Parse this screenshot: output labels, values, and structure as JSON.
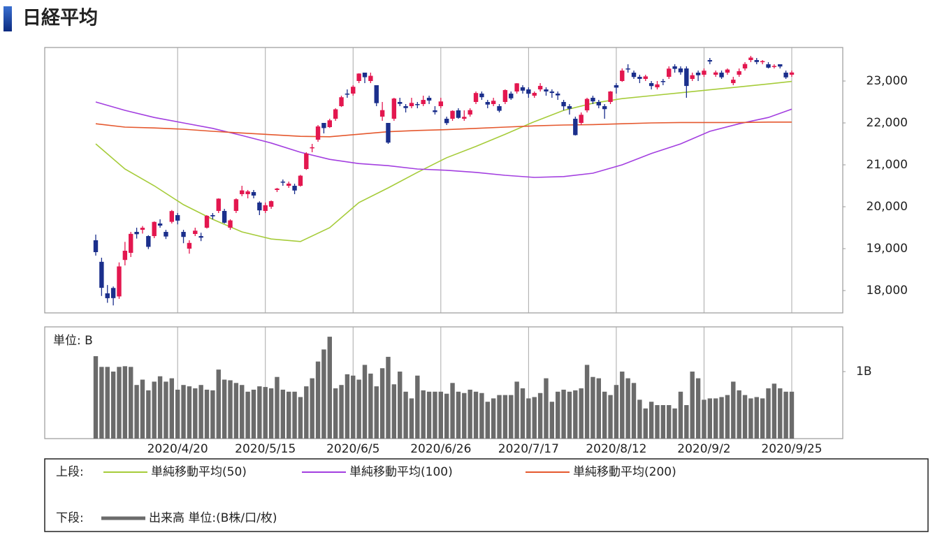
{
  "chart_data": {
    "type": "candlestick",
    "title": "日経平均",
    "up_color": "#e3174f",
    "down_color": "#1b2f8c",
    "categories": [
      null,
      null,
      null,
      null,
      null,
      null,
      null,
      null,
      null,
      null,
      null,
      null,
      null,
      null,
      "2020/4/20",
      null,
      null,
      null,
      null,
      null,
      null,
      null,
      null,
      null,
      null,
      null,
      null,
      null,
      null,
      "2020/5/15",
      null,
      null,
      null,
      null,
      null,
      null,
      null,
      null,
      null,
      null,
      null,
      null,
      null,
      null,
      "2020/6/5",
      null,
      null,
      null,
      null,
      null,
      null,
      null,
      null,
      null,
      null,
      null,
      null,
      null,
      null,
      "2020/6/26",
      null,
      null,
      null,
      null,
      null,
      null,
      null,
      null,
      null,
      null,
      null,
      null,
      null,
      null,
      "2020/7/17",
      null,
      null,
      null,
      null,
      null,
      null,
      null,
      null,
      null,
      null,
      null,
      null,
      null,
      null,
      "2020/8/12",
      null,
      null,
      null,
      null,
      null,
      null,
      null,
      null,
      null,
      null,
      null,
      null,
      null,
      null,
      "2020/9/2",
      null,
      null,
      null,
      null,
      null,
      null,
      null,
      null,
      null,
      null,
      null,
      null,
      null,
      null,
      "2020/9/25"
    ],
    "open": [
      19200,
      18686,
      17934,
      18062,
      17860,
      18730,
      18900,
      19400,
      19450,
      19300,
      19300,
      19600,
      19400,
      19640,
      19800,
      19400,
      19000,
      19350,
      19300,
      19500,
      19800,
      19900,
      19900,
      19500,
      19900,
      20300,
      20300,
      20350,
      20100,
      19900,
      20000,
      20400,
      20600,
      20500,
      20500,
      20500,
      20900,
      21400,
      21600,
      22000,
      21900,
      22100,
      22400,
      22700,
      22700,
      23000,
      23200,
      23000,
      22900,
      22150,
      22000,
      22100,
      22500,
      22400,
      22400,
      22450,
      22450,
      22600,
      22300,
      22400,
      22100,
      22100,
      22300,
      22100,
      22200,
      22500,
      22700,
      22500,
      22450,
      22400,
      22500,
      22700,
      22750,
      22850,
      22800,
      22650,
      22800,
      22800,
      22750,
      22700,
      22500,
      22400,
      22100,
      22000,
      22300,
      22600,
      22500,
      22400,
      22500,
      22900,
      23000,
      23300,
      23200,
      23100,
      23050,
      22950,
      22850,
      23000,
      23100,
      23350,
      23300,
      23300,
      23050,
      23200,
      23150,
      23500,
      23150,
      23200,
      23200,
      22950,
      23150,
      23300,
      23500,
      23500,
      23450,
      23400,
      23350,
      23400,
      23200,
      23150
    ],
    "high": [
      19336,
      18784,
      18132,
      18097,
      18672,
      19162,
      19400,
      19500,
      19540,
      19320,
      19650,
      19700,
      19450,
      19922,
      19850,
      19450,
      19200,
      19500,
      19380,
      19800,
      19850,
      20200,
      19950,
      19700,
      20200,
      20500,
      20400,
      20400,
      20130,
      20100,
      20150,
      20450,
      20650,
      20600,
      20550,
      20760,
      21300,
      21500,
      21950,
      22000,
      22100,
      22350,
      22650,
      22800,
      22900,
      23185,
      23200,
      23200,
      22900,
      22500,
      22000,
      22600,
      22600,
      22450,
      22600,
      22500,
      22650,
      22650,
      22400,
      22600,
      22150,
      22300,
      22350,
      22300,
      22350,
      22750,
      22750,
      22550,
      22600,
      22450,
      22800,
      22750,
      22950,
      22900,
      22850,
      22750,
      22950,
      22850,
      22800,
      22750,
      22550,
      22450,
      22150,
      22250,
      22600,
      22650,
      22550,
      22450,
      22760,
      22950,
      23300,
      23400,
      23250,
      23150,
      23150,
      23000,
      23000,
      23050,
      23350,
      23400,
      23350,
      23350,
      23200,
      23250,
      23300,
      23550,
      23250,
      23250,
      23300,
      23100,
      23300,
      23450,
      23600,
      23550,
      23500,
      23450,
      23400,
      23400,
      23250,
      23250
    ],
    "low": [
      18834,
      17871,
      17708,
      17646,
      17802,
      18600,
      18800,
      19240,
      19360,
      18990,
      19250,
      19500,
      19230,
      19600,
      19580,
      19130,
      18880,
      19300,
      19180,
      19480,
      19700,
      19850,
      19600,
      19450,
      19850,
      20250,
      20200,
      20200,
      19800,
      19850,
      19950,
      20350,
      20500,
      20450,
      20300,
      20480,
      20880,
      21300,
      21550,
      21750,
      21880,
      22050,
      22380,
      22600,
      22650,
      22950,
      22950,
      22950,
      22400,
      22050,
      21500,
      22050,
      22400,
      22250,
      22350,
      22350,
      22400,
      22450,
      22200,
      22350,
      21950,
      22050,
      22100,
      22050,
      22150,
      22450,
      22550,
      22350,
      22400,
      22250,
      22450,
      22550,
      22700,
      22700,
      22600,
      22600,
      22750,
      22650,
      22600,
      22550,
      22300,
      22200,
      21700,
      21950,
      22250,
      22450,
      22350,
      22100,
      22450,
      22700,
      22980,
      23200,
      23050,
      22950,
      23000,
      22800,
      22800,
      22900,
      23050,
      23200,
      23150,
      22600,
      23000,
      23000,
      23100,
      23400,
      23100,
      23050,
      23150,
      22900,
      23100,
      23250,
      23450,
      23400,
      23400,
      23300,
      23300,
      23300,
      23050,
      23100
    ],
    "close": [
      18917,
      18065,
      17818,
      17820,
      18576,
      18950,
      19353,
      19345,
      19498,
      19043,
      19638,
      19550,
      19290,
      19897,
      19669,
      19280,
      19137,
      19429,
      19262,
      19783,
      19771,
      20193,
      19619,
      19674,
      20179,
      20390,
      20366,
      20267,
      19914,
      20037,
      20133,
      20433,
      20595,
      20552,
      20388,
      20741,
      21271,
      21419,
      21916,
      21877,
      22062,
      22325,
      22613,
      22695,
      22863,
      23178,
      23091,
      23124,
      22472,
      22305,
      21530,
      22582,
      22455,
      22355,
      22478,
      22437,
      22549,
      22534,
      22259,
      22512,
      21995,
      22288,
      22121,
      22145,
      22306,
      22714,
      22614,
      22438,
      22529,
      22290,
      22784,
      22587,
      22945,
      22770,
      22696,
      22717,
      22884,
      22751,
      22715,
      22657,
      22397,
      22339,
      21710,
      22195,
      22573,
      22514,
      22418,
      22329,
      22750,
      22843,
      23249,
      23289,
      23096,
      23051,
      23110,
      22880,
      22920,
      22985,
      23296,
      23290,
      23208,
      22882,
      23139,
      23138,
      23247,
      23465,
      23205,
      23089,
      23274,
      23032,
      23235,
      23406,
      23559,
      23454,
      23475,
      23319,
      23360,
      23346,
      23087,
      23204
    ],
    "ylim": [
      17467,
      23800
    ],
    "yticks": [
      {
        "value": 18000,
        "label": "18,000"
      },
      {
        "value": 19000,
        "label": "19,000"
      },
      {
        "value": 20000,
        "label": "20,000"
      },
      {
        "value": 21000,
        "label": "21,000"
      },
      {
        "value": 22000,
        "label": "22,000"
      },
      {
        "value": 23000,
        "label": "23,000"
      }
    ],
    "upper_label": "上段:",
    "lower_label": "下段:",
    "series": [
      {
        "name": "単純移動平均(50)",
        "color": "#a6cc3a",
        "x": [
          0,
          5,
          10,
          15,
          20,
          25,
          30,
          35,
          40,
          45,
          50,
          55,
          60,
          65,
          70,
          75,
          80,
          85,
          90,
          95,
          100,
          105,
          110,
          115,
          119
        ],
        "values": [
          21500,
          20900,
          20500,
          20050,
          19700,
          19400,
          19230,
          19170,
          19500,
          20100,
          20450,
          20820,
          21170,
          21440,
          21730,
          22030,
          22300,
          22470,
          22580,
          22650,
          22720,
          22790,
          22860,
          22930,
          22990
        ]
      },
      {
        "name": "単純移動平均(100)",
        "color": "#a33fe0",
        "x": [
          0,
          5,
          10,
          15,
          20,
          25,
          30,
          35,
          40,
          45,
          50,
          55,
          60,
          65,
          70,
          75,
          80,
          85,
          90,
          95,
          100,
          105,
          110,
          115,
          119
        ],
        "values": [
          22500,
          22300,
          22130,
          22000,
          21870,
          21700,
          21520,
          21300,
          21130,
          21030,
          20980,
          20900,
          20870,
          20820,
          20750,
          20700,
          20720,
          20800,
          21000,
          21270,
          21500,
          21800,
          21980,
          22130,
          22330
        ]
      },
      {
        "name": "単純移動平均(200)",
        "color": "#e5582e",
        "x": [
          0,
          5,
          10,
          15,
          20,
          25,
          30,
          35,
          40,
          45,
          50,
          55,
          60,
          65,
          70,
          75,
          80,
          85,
          90,
          95,
          100,
          105,
          110,
          115,
          119
        ],
        "values": [
          21980,
          21900,
          21880,
          21850,
          21800,
          21760,
          21720,
          21680,
          21670,
          21730,
          21790,
          21820,
          21840,
          21870,
          21900,
          21930,
          21950,
          21960,
          21980,
          22000,
          22010,
          22010,
          22010,
          22020,
          22020
        ]
      }
    ],
    "volume": {
      "name": "出来高 単位:(B株/口/枚)",
      "unit_label": "単位: B",
      "color": "#6b6b6b",
      "ylim": [
        0,
        1.667
      ],
      "yticks": [
        {
          "value": 1,
          "label": "1B"
        }
      ],
      "values": [
        1.23,
        1.07,
        1.07,
        1.0,
        1.07,
        1.08,
        1.07,
        0.8,
        0.88,
        0.72,
        0.85,
        0.93,
        0.85,
        0.9,
        0.73,
        0.8,
        0.78,
        0.75,
        0.8,
        0.73,
        0.72,
        1.03,
        0.88,
        0.87,
        0.83,
        0.8,
        0.7,
        0.73,
        0.78,
        0.77,
        0.75,
        0.92,
        0.73,
        0.7,
        0.7,
        0.62,
        0.78,
        0.9,
        1.15,
        1.33,
        1.52,
        0.75,
        0.8,
        0.96,
        0.94,
        0.88,
        1.1,
        0.97,
        0.78,
        1.05,
        1.22,
        0.81,
        1.0,
        0.7,
        0.6,
        0.94,
        0.72,
        0.7,
        0.7,
        0.7,
        0.67,
        0.83,
        0.7,
        0.68,
        0.73,
        0.7,
        0.68,
        0.55,
        0.6,
        0.65,
        0.65,
        0.65,
        0.85,
        0.75,
        0.6,
        0.62,
        0.68,
        0.9,
        0.55,
        0.7,
        0.73,
        0.7,
        0.72,
        0.75,
        1.1,
        0.92,
        0.9,
        0.7,
        0.65,
        0.8,
        1.0,
        0.9,
        0.83,
        0.58,
        0.45,
        0.55,
        0.5,
        0.5,
        0.5,
        0.45,
        0.7,
        0.5,
        1.0,
        0.9,
        0.58,
        0.6,
        0.6,
        0.62,
        0.65,
        0.85,
        0.72,
        0.65,
        0.6,
        0.62,
        0.6,
        0.75,
        0.82,
        0.75,
        0.7,
        0.7
      ]
    }
  }
}
